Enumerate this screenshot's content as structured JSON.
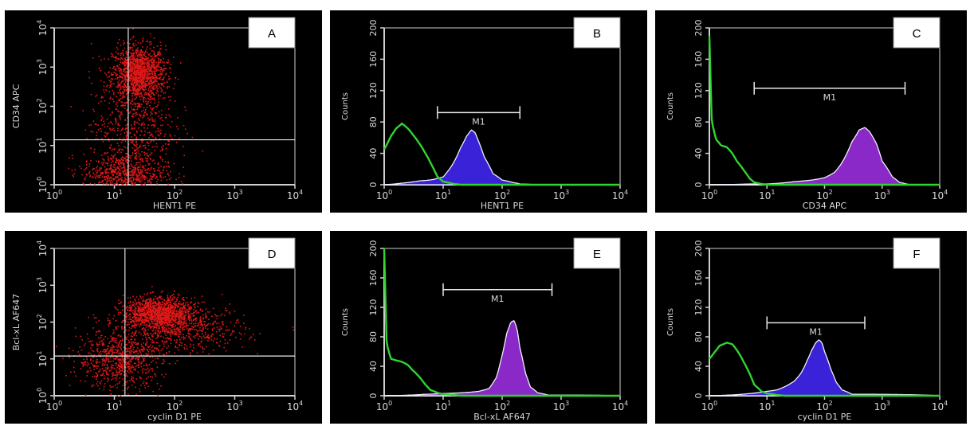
{
  "colors": {
    "background": "#000000",
    "axis": "#cfcfcf",
    "text": "#d8d8d8",
    "dots": "#e01818",
    "negative_control": "#2fd52f",
    "blue_fill": "#3a22d8",
    "purple_fill": "#8a28c8",
    "hist_outline": "#f0f0ff",
    "label_box": "#ffffff"
  },
  "chart_data": [
    {
      "id": "A",
      "type": "scatter",
      "panel_label": "A",
      "xlabel": "HENT1 PE",
      "ylabel": "CD34 APC",
      "xscale": "log",
      "yscale": "log",
      "xlim": [
        1,
        10000
      ],
      "ylim": [
        1,
        10000
      ],
      "xticks": [
        "10^0",
        "10^1",
        "10^2",
        "10^3",
        "10^4"
      ],
      "yticks": [
        "10^0",
        "10^1",
        "10^2",
        "10^3",
        "10^4"
      ],
      "quadrant_gate": {
        "x": 17,
        "y": 14
      },
      "populations": [
        {
          "center_x": 25,
          "center_y": 700,
          "spread_x_decades": 0.22,
          "spread_y_decades": 0.35,
          "weight": 0.55
        },
        {
          "center_x": 14,
          "center_y": 2,
          "spread_x_decades": 0.35,
          "spread_y_decades": 0.25,
          "weight": 0.25
        },
        {
          "center_x": 20,
          "center_y": 30,
          "spread_x_decades": 0.35,
          "spread_y_decades": 0.6,
          "weight": 0.2
        }
      ]
    },
    {
      "id": "B",
      "type": "area",
      "panel_label": "B",
      "xlabel": "HENT1 PE",
      "ylabel": "Counts",
      "xscale": "log",
      "xlim": [
        1,
        10000
      ],
      "ylim": [
        0,
        200
      ],
      "yticks": [
        0,
        40,
        80,
        120,
        160,
        200
      ],
      "marker": {
        "label": "M1",
        "from": 8,
        "to": 200,
        "y": 92
      },
      "series": [
        {
          "role": "negative-control",
          "x": [
            1,
            1.3,
            1.6,
            2,
            2.5,
            3.2,
            4,
            5,
            6.5,
            8,
            10,
            15,
            20,
            40,
            100,
            1000,
            10000
          ],
          "values": [
            45,
            62,
            72,
            78,
            72,
            62,
            52,
            40,
            24,
            10,
            4,
            1,
            0,
            0,
            0,
            0,
            0
          ]
        },
        {
          "role": "stained",
          "fill": "blue",
          "x": [
            1,
            2,
            4,
            6,
            10,
            15,
            20,
            25,
            30,
            35,
            40,
            50,
            70,
            100,
            150,
            200,
            400,
            10000
          ],
          "values": [
            0,
            2,
            5,
            6,
            10,
            28,
            48,
            62,
            70,
            66,
            55,
            35,
            14,
            6,
            3,
            1,
            0,
            0
          ]
        }
      ]
    },
    {
      "id": "C",
      "type": "area",
      "panel_label": "C",
      "xlabel": "CD34 APC",
      "ylabel": "Counts",
      "xscale": "log",
      "xlim": [
        1,
        10000
      ],
      "ylim": [
        0,
        200
      ],
      "yticks": [
        0,
        40,
        80,
        120,
        160,
        200
      ],
      "marker": {
        "label": "M1",
        "from": 6,
        "to": 2500,
        "y": 123
      },
      "series": [
        {
          "role": "negative-control",
          "x": [
            1,
            1.1,
            1.3,
            1.6,
            2,
            2.5,
            3,
            4,
            5,
            6,
            8,
            10,
            20,
            100,
            10000
          ],
          "values": [
            190,
            80,
            58,
            50,
            48,
            40,
            30,
            18,
            8,
            3,
            1,
            0,
            0,
            0,
            0
          ]
        },
        {
          "role": "stained",
          "fill": "purple",
          "x": [
            1,
            5,
            10,
            30,
            60,
            100,
            150,
            200,
            300,
            400,
            500,
            600,
            800,
            1000,
            1500,
            2000,
            3000,
            10000
          ],
          "values": [
            0,
            1,
            1,
            4,
            6,
            9,
            16,
            28,
            55,
            70,
            73,
            68,
            52,
            30,
            10,
            3,
            0,
            0
          ]
        }
      ]
    },
    {
      "id": "D",
      "type": "scatter",
      "panel_label": "D",
      "xlabel": "cyclin D1 PE",
      "ylabel": "Bcl-xL AF647",
      "xscale": "log",
      "yscale": "log",
      "xlim": [
        1,
        10000
      ],
      "ylim": [
        1,
        10000
      ],
      "xticks": [
        "10^0",
        "10^1",
        "10^2",
        "10^3",
        "10^4"
      ],
      "yticks": [
        "10^0",
        "10^1",
        "10^2",
        "10^3",
        "10^4"
      ],
      "quadrant_gate": {
        "x": 15,
        "y": 12
      },
      "populations": [
        {
          "center_x": 55,
          "center_y": 180,
          "spread_x_decades": 0.3,
          "spread_y_decades": 0.22,
          "weight": 0.5
        },
        {
          "center_x": 12,
          "center_y": 10,
          "spread_x_decades": 0.35,
          "spread_y_decades": 0.4,
          "weight": 0.3
        },
        {
          "center_x": 150,
          "center_y": 60,
          "spread_x_decades": 0.5,
          "spread_y_decades": 0.3,
          "weight": 0.2
        }
      ]
    },
    {
      "id": "E",
      "type": "area",
      "panel_label": "E",
      "xlabel": "Bcl-xL AF647",
      "ylabel": "Counts",
      "xscale": "log",
      "xlim": [
        1,
        10000
      ],
      "ylim": [
        0,
        200
      ],
      "yticks": [
        0,
        40,
        80,
        120,
        160,
        200
      ],
      "marker": {
        "label": "M1",
        "from": 10,
        "to": 700,
        "y": 144
      },
      "series": [
        {
          "role": "negative-control",
          "x": [
            1,
            1.1,
            1.3,
            1.6,
            2,
            2.5,
            3,
            4,
            5,
            6,
            8,
            10,
            15,
            20,
            100,
            10000
          ],
          "values": [
            200,
            70,
            50,
            48,
            46,
            42,
            35,
            25,
            15,
            8,
            4,
            2,
            1,
            0,
            0,
            0
          ]
        },
        {
          "role": "stained",
          "fill": "purple",
          "x": [
            1,
            5,
            10,
            20,
            40,
            60,
            80,
            100,
            120,
            140,
            160,
            180,
            200,
            250,
            300,
            400,
            600,
            10000
          ],
          "values": [
            0,
            2,
            3,
            4,
            6,
            10,
            25,
            55,
            85,
            100,
            102,
            90,
            65,
            30,
            12,
            4,
            1,
            0
          ]
        }
      ]
    },
    {
      "id": "F",
      "type": "area",
      "panel_label": "F",
      "xlabel": "cyclin D1 PE",
      "ylabel": "Counts",
      "xscale": "log",
      "xlim": [
        1,
        10000
      ],
      "ylim": [
        0,
        200
      ],
      "yticks": [
        0,
        40,
        80,
        120,
        160,
        200
      ],
      "marker": {
        "label": "M1",
        "from": 10,
        "to": 500,
        "y": 99
      },
      "series": [
        {
          "role": "negative-control",
          "x": [
            1,
            1.2,
            1.5,
            2,
            2.5,
            3,
            4,
            5,
            6,
            8,
            10,
            15,
            20,
            100,
            10000
          ],
          "values": [
            50,
            58,
            68,
            72,
            70,
            62,
            45,
            30,
            15,
            6,
            3,
            1,
            0,
            0,
            0
          ]
        },
        {
          "role": "stained",
          "fill": "blue",
          "x": [
            1,
            5,
            10,
            15,
            20,
            30,
            40,
            50,
            60,
            70,
            80,
            90,
            100,
            130,
            160,
            200,
            300,
            10000
          ],
          "values": [
            0,
            3,
            6,
            8,
            12,
            20,
            32,
            48,
            62,
            72,
            76,
            72,
            60,
            35,
            18,
            8,
            2,
            0
          ]
        }
      ]
    }
  ]
}
